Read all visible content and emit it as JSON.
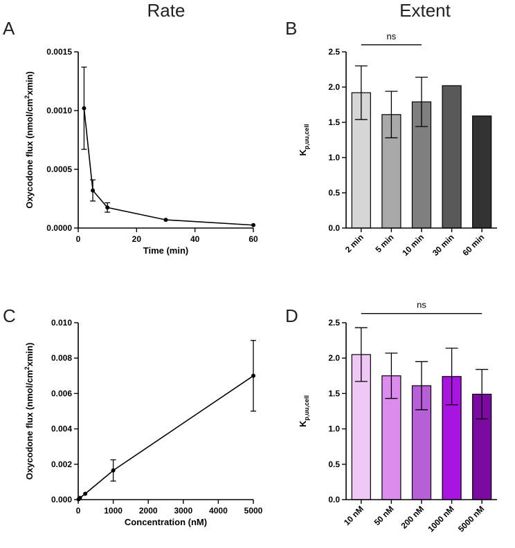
{
  "column_titles": {
    "left": "Rate",
    "right": "Extent"
  },
  "chart_data": [
    {
      "panel": "A",
      "type": "line",
      "title": "",
      "xlabel": "Time (min)",
      "ylabel_main": "Oxycodone flux (nmol/cm",
      "ylabel_sup": "2",
      "ylabel_tail": "xmin)",
      "xlim": [
        0,
        60
      ],
      "ylim": [
        0,
        0.0015
      ],
      "x_ticks": [
        0,
        20,
        40,
        60
      ],
      "x_tick_labels": [
        "0",
        "20",
        "40",
        "60"
      ],
      "y_ticks": [
        0,
        0.0005,
        0.001,
        0.0015
      ],
      "y_tick_labels": [
        "0.0000",
        "0.0005",
        "0.0010",
        "0.0015"
      ],
      "series": [
        {
          "name": "Oxycodone flux",
          "x": [
            2,
            5,
            10,
            30,
            60
          ],
          "y": [
            0.00102,
            0.00032,
            0.000175,
            7e-05,
            2.5e-05
          ],
          "err": [
            0.00035,
            9e-05,
            4e-05,
            0.0,
            0.0
          ]
        }
      ]
    },
    {
      "panel": "B",
      "type": "bar",
      "xlabel": "",
      "ylabel_main": "K",
      "ylabel_sub": "p,uu,cell",
      "ylim": [
        0,
        2.5
      ],
      "y_ticks": [
        0,
        0.5,
        1.0,
        1.5,
        2.0,
        2.5
      ],
      "y_tick_labels": [
        "0.0",
        "0.5",
        "1.0",
        "1.5",
        "2.0",
        "2.5"
      ],
      "categories": [
        "2 min",
        "5 min",
        "10 min",
        "30 min",
        "60 min"
      ],
      "values": [
        1.92,
        1.61,
        1.79,
        2.02,
        1.59
      ],
      "err": [
        0.38,
        0.33,
        0.35,
        0.0,
        0.0
      ],
      "colors": [
        "#d6d6d6",
        "#a9a9a9",
        "#7f7f7f",
        "#595959",
        "#333333"
      ],
      "annotation": {
        "text": "ns",
        "from_index": 0,
        "to_index": 2,
        "y": 2.6
      }
    },
    {
      "panel": "C",
      "type": "line",
      "xlabel": "Concentration (nM)",
      "ylabel_main": "Oxycodone flux (nmol/cm",
      "ylabel_sup": "2",
      "ylabel_tail": "xmin)",
      "xlim": [
        0,
        5000
      ],
      "ylim": [
        0,
        0.01
      ],
      "x_ticks": [
        0,
        1000,
        2000,
        3000,
        4000,
        5000
      ],
      "x_tick_labels": [
        "0",
        "1000",
        "2000",
        "3000",
        "4000",
        "5000"
      ],
      "y_ticks": [
        0,
        0.002,
        0.004,
        0.006,
        0.008,
        0.01
      ],
      "y_tick_labels": [
        "0.000",
        "0.002",
        "0.004",
        "0.006",
        "0.008",
        "0.010"
      ],
      "series": [
        {
          "name": "Oxycodone flux",
          "x": [
            10,
            50,
            200,
            1000,
            5000
          ],
          "y": [
            2e-05,
            0.0001,
            0.00033,
            0.00165,
            0.007
          ],
          "err": [
            0.0,
            0.0,
            0.0,
            0.0006,
            0.002
          ]
        }
      ]
    },
    {
      "panel": "D",
      "type": "bar",
      "xlabel": "",
      "ylabel_main": "K",
      "ylabel_sub": "p,uu,cell",
      "ylim": [
        0,
        2.5
      ],
      "y_ticks": [
        0,
        0.5,
        1.0,
        1.5,
        2.0,
        2.5
      ],
      "y_tick_labels": [
        "0.0",
        "0.5",
        "1.0",
        "1.5",
        "2.0",
        "2.5"
      ],
      "categories": [
        "10 nM",
        "50 nM",
        "200 nM",
        "1000 nM",
        "5000 nM"
      ],
      "values": [
        2.05,
        1.75,
        1.61,
        1.74,
        1.49
      ],
      "err": [
        0.38,
        0.32,
        0.34,
        0.4,
        0.35
      ],
      "colors": [
        "#f0c8f5",
        "#dc8ced",
        "#b65fd6",
        "#a815e0",
        "#7b0aa0"
      ],
      "annotation": {
        "text": "ns",
        "from_index": 0,
        "to_index": 4,
        "y": 2.63
      }
    }
  ]
}
